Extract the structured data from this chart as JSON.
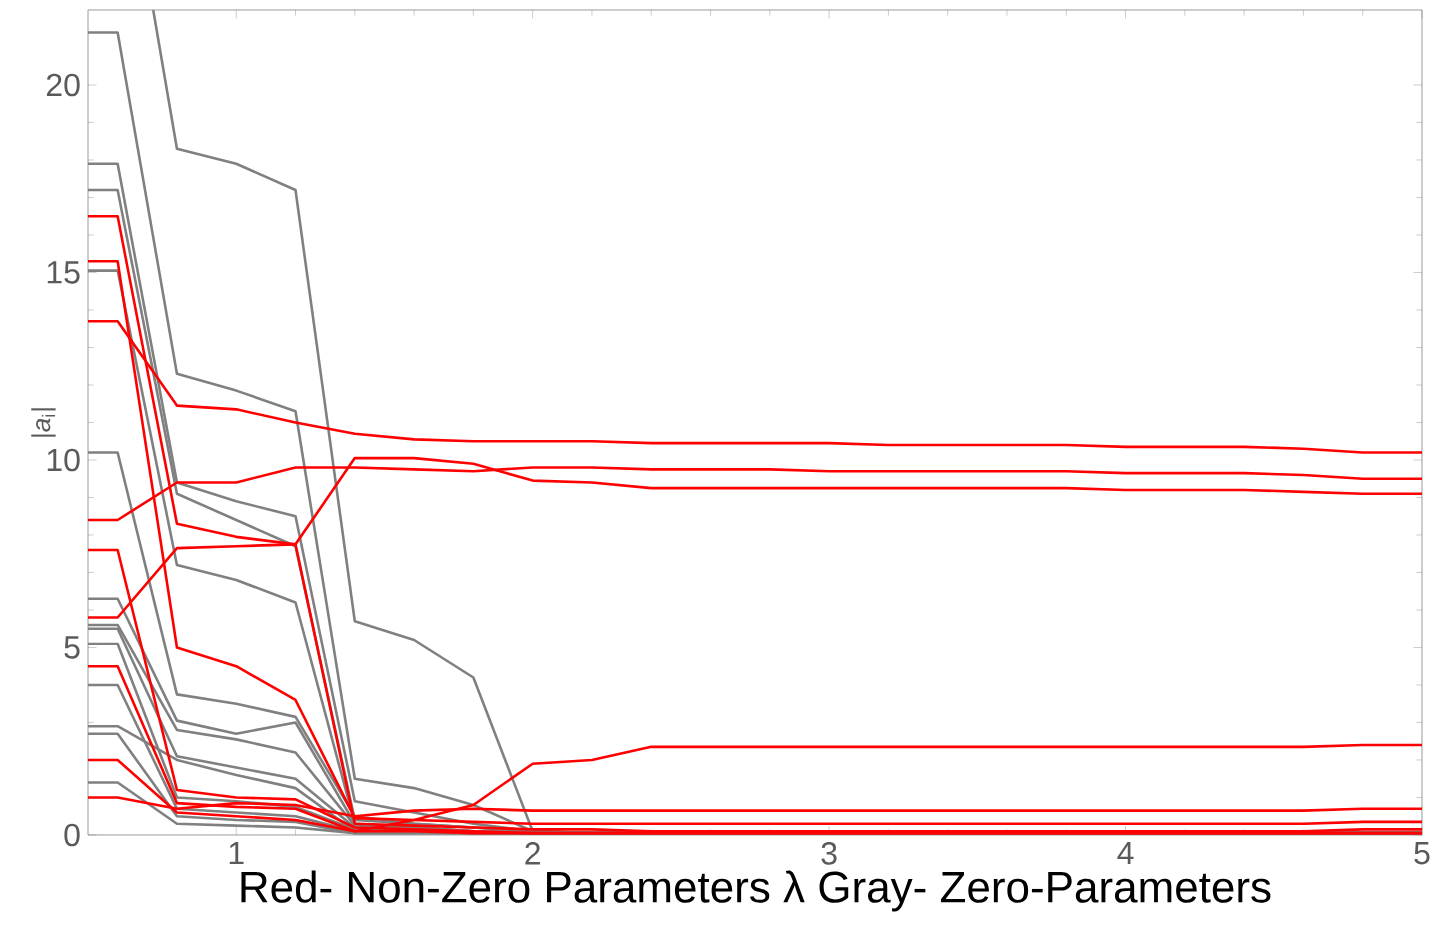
{
  "chart_data": {
    "type": "line",
    "xlabel": "Red- Non-Zero Parameters λ  Gray- Zero-Parameters",
    "ylabel": "|*a*$_{i}$|",
    "xlim": [
      0.5,
      5
    ],
    "ylim": [
      0,
      22
    ],
    "xticks": [
      1,
      2,
      3,
      4,
      5
    ],
    "yticks": [
      0,
      5,
      10,
      15,
      20
    ],
    "x": [
      0.5,
      0.6,
      0.8,
      1,
      1.2,
      1.4,
      1.6,
      1.8,
      2,
      2.2,
      2.4,
      2.6,
      2.8,
      3,
      3.2,
      3.4,
      3.6,
      3.8,
      4,
      4.2,
      4.4,
      4.6,
      4.8,
      5
    ],
    "series": [
      {
        "color": "#808080",
        "x": [
          0.72,
          0.8,
          1,
          1.2,
          1.4,
          1.6,
          1.8,
          2,
          2.2,
          5
        ],
        "values": [
          22,
          18.3,
          17.9,
          17.2,
          5.7,
          5.2,
          4.2,
          0.1,
          0.05,
          0.05
        ]
      },
      {
        "color": "#808080",
        "x": [
          0.5,
          0.6,
          0.8,
          1,
          1.2,
          1.4,
          1.6,
          1.8,
          2,
          2.2,
          5
        ],
        "values": [
          21.4,
          21.4,
          12.3,
          11.85,
          11.3,
          1.5,
          1.25,
          0.8,
          0.1,
          0.05,
          0.05
        ]
      },
      {
        "color": "#808080",
        "x": [
          0.5,
          0.6,
          0.8,
          1,
          1.2,
          1.4,
          1.6,
          1.8,
          2,
          2.2,
          5
        ],
        "values": [
          17.9,
          17.9,
          9.4,
          8.9,
          8.5,
          0.9,
          0.6,
          0.3,
          0.1,
          0.05,
          0.05
        ]
      },
      {
        "color": "#808080",
        "x": [
          0.5,
          0.6,
          0.8,
          1,
          1.2,
          1.4,
          1.6,
          1.8,
          2,
          2.2,
          5
        ],
        "values": [
          17.2,
          17.2,
          9.1,
          8.4,
          7.7,
          0.4,
          0.3,
          0.2,
          0.1,
          0.05,
          0.05
        ]
      },
      {
        "color": "#808080",
        "x": [
          0.5,
          0.6,
          0.8,
          1,
          1.2,
          1.4,
          1.6,
          1.8,
          2,
          2.2,
          5
        ],
        "values": [
          15.05,
          15.05,
          7.2,
          6.8,
          6.2,
          0.3,
          0.2,
          0.1,
          0.05,
          0.05,
          0.05
        ]
      },
      {
        "color": "#808080",
        "x": [
          0.5,
          0.6,
          0.8,
          1,
          1.2,
          1.4,
          1.6,
          1.8,
          2,
          2.2,
          5
        ],
        "values": [
          10.2,
          10.2,
          3.75,
          3.5,
          3.15,
          0.5,
          0.3,
          0.2,
          0.1,
          0.05,
          0.05
        ]
      },
      {
        "color": "#808080",
        "x": [
          0.5,
          0.6,
          0.8,
          1,
          1.2,
          1.4,
          1.6,
          1.8,
          2,
          2.2,
          5
        ],
        "values": [
          6.3,
          6.3,
          3.05,
          2.7,
          3.0,
          0.3,
          0.2,
          0.1,
          0.05,
          0.05,
          0.05
        ]
      },
      {
        "color": "#808080",
        "x": [
          0.5,
          0.6,
          0.8,
          1,
          1.2,
          1.4,
          1.6,
          1.8,
          2,
          2.2,
          5
        ],
        "values": [
          5.6,
          5.6,
          2.8,
          2.55,
          2.2,
          0.25,
          0.2,
          0.1,
          0.05,
          0.05,
          0.05
        ]
      },
      {
        "color": "#808080",
        "x": [
          0.5,
          0.6,
          0.8,
          1,
          1.2,
          1.4,
          1.6,
          1.8,
          2,
          2.2,
          5
        ],
        "values": [
          5.5,
          5.5,
          2.1,
          1.8,
          1.5,
          0.2,
          0.15,
          0.1,
          0.05,
          0.05,
          0.05
        ]
      },
      {
        "color": "#808080",
        "x": [
          0.5,
          0.6,
          0.8,
          1,
          1.2,
          1.4,
          1.6,
          1.8,
          2,
          2.2,
          5
        ],
        "values": [
          5.1,
          5.1,
          1.0,
          0.9,
          0.75,
          0.15,
          0.1,
          0.05,
          0.05,
          0.05,
          0.05
        ]
      },
      {
        "color": "#808080",
        "x": [
          0.5,
          0.6,
          0.8,
          1,
          1.2,
          1.4,
          1.6,
          1.8,
          2,
          2.2,
          5
        ],
        "values": [
          4.0,
          4.0,
          0.7,
          0.6,
          0.5,
          0.1,
          0.1,
          0.05,
          0.05,
          0.05,
          0.05
        ]
      },
      {
        "color": "#808080",
        "x": [
          0.5,
          0.6,
          0.8,
          1,
          1.2,
          1.4,
          1.6,
          1.8,
          2,
          2.2,
          5
        ],
        "values": [
          2.9,
          2.9,
          2.0,
          1.6,
          1.25,
          0.1,
          0.1,
          0.05,
          0.05,
          0.05,
          0.05
        ]
      },
      {
        "color": "#808080",
        "x": [
          0.5,
          0.6,
          0.8,
          1,
          1.2,
          1.4,
          1.6,
          1.8,
          2,
          2.2,
          5
        ],
        "values": [
          2.7,
          2.7,
          0.5,
          0.4,
          0.35,
          0.05,
          0.05,
          0.05,
          0.05,
          0.05,
          0.05
        ]
      },
      {
        "color": "#808080",
        "x": [
          0.5,
          0.6,
          0.8,
          1,
          1.2,
          1.4,
          1.6,
          1.8,
          2,
          2.2,
          5
        ],
        "values": [
          1.4,
          1.4,
          0.3,
          0.25,
          0.2,
          0.05,
          0.05,
          0.05,
          0.05,
          0.05,
          0.05
        ]
      },
      {
        "color": "#ff0000",
        "values": [
          13.7,
          13.7,
          11.45,
          11.35,
          11.0,
          10.7,
          10.55,
          10.5,
          10.5,
          10.5,
          10.45,
          10.45,
          10.45,
          10.45,
          10.4,
          10.4,
          10.4,
          10.4,
          10.35,
          10.35,
          10.35,
          10.3,
          10.2,
          10.2
        ]
      },
      {
        "color": "#ff0000",
        "values": [
          8.4,
          8.4,
          9.4,
          9.4,
          9.8,
          9.8,
          9.75,
          9.7,
          9.8,
          9.8,
          9.75,
          9.75,
          9.75,
          9.7,
          9.7,
          9.7,
          9.7,
          9.7,
          9.65,
          9.65,
          9.65,
          9.6,
          9.5,
          9.5
        ]
      },
      {
        "color": "#ff0000",
        "values": [
          5.8,
          5.8,
          7.65,
          7.7,
          7.75,
          10.05,
          10.05,
          9.9,
          9.45,
          9.4,
          9.25,
          9.25,
          9.25,
          9.25,
          9.25,
          9.25,
          9.25,
          9.25,
          9.2,
          9.2,
          9.2,
          9.15,
          9.1,
          9.1
        ]
      },
      {
        "color": "#ff0000",
        "values": [
          16.5,
          16.5,
          8.3,
          7.95,
          7.75,
          0.3,
          0.25,
          0.2,
          0.15,
          0.15,
          0.1,
          0.1,
          0.1,
          0.1,
          0.1,
          0.1,
          0.1,
          0.1,
          0.1,
          0.1,
          0.1,
          0.1,
          0.15,
          0.15
        ]
      },
      {
        "color": "#ff0000",
        "values": [
          15.3,
          15.3,
          5.0,
          4.5,
          3.6,
          0.45,
          0.4,
          0.35,
          0.3,
          0.3,
          0.3,
          0.3,
          0.3,
          0.3,
          0.3,
          0.3,
          0.3,
          0.3,
          0.3,
          0.3,
          0.3,
          0.3,
          0.35,
          0.35
        ]
      },
      {
        "color": "#ff0000",
        "values": [
          7.6,
          7.6,
          1.2,
          1.0,
          0.95,
          0.2,
          0.15,
          0.1,
          0.05,
          0.05,
          0.05,
          0.05,
          0.05,
          0.05,
          0.05,
          0.05,
          0.05,
          0.05,
          0.05,
          0.05,
          0.05,
          0.05,
          0.05,
          0.05
        ]
      },
      {
        "color": "#ff0000",
        "values": [
          4.5,
          4.5,
          0.85,
          0.75,
          0.7,
          0.1,
          0.1,
          0.05,
          0.05,
          0.05,
          0.05,
          0.05,
          0.05,
          0.05,
          0.05,
          0.05,
          0.05,
          0.05,
          0.05,
          0.05,
          0.05,
          0.05,
          0.05,
          0.05
        ]
      },
      {
        "color": "#ff0000",
        "values": [
          2.0,
          2.0,
          0.6,
          0.5,
          0.4,
          0.1,
          0.4,
          0.8,
          1.9,
          2.0,
          2.35,
          2.35,
          2.35,
          2.35,
          2.35,
          2.35,
          2.35,
          2.35,
          2.35,
          2.35,
          2.35,
          2.35,
          2.4,
          2.4
        ]
      },
      {
        "color": "#ff0000",
        "values": [
          1.0,
          1.0,
          0.7,
          0.85,
          0.8,
          0.5,
          0.65,
          0.7,
          0.65,
          0.65,
          0.65,
          0.65,
          0.65,
          0.65,
          0.65,
          0.65,
          0.65,
          0.65,
          0.65,
          0.65,
          0.65,
          0.65,
          0.7,
          0.7
        ]
      }
    ]
  }
}
